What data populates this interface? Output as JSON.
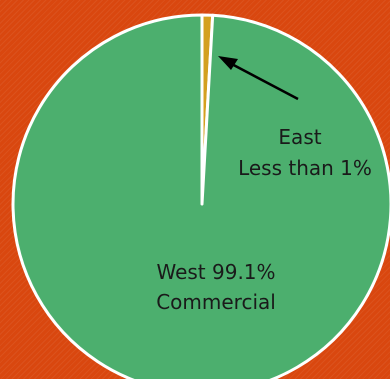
{
  "chart_data": {
    "type": "pie",
    "slices": [
      {
        "label": "West 99.1%",
        "sublabel": "Commercial",
        "value": 99.1,
        "color": "#4caf6e"
      },
      {
        "label": "East",
        "sublabel": "Less than 1%",
        "value": 0.9,
        "color": "#d4a020"
      }
    ],
    "start_angle": 0,
    "border_color": "#ffffff",
    "background_color": "#d9470f",
    "annotation": {
      "arrow": true,
      "points_to": "East"
    }
  }
}
